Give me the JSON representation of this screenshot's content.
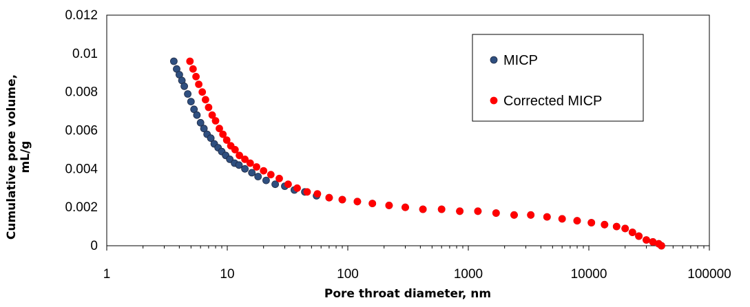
{
  "chart_data": {
    "type": "scatter",
    "title": "",
    "xlabel": "Pore throat diameter, nm",
    "ylabel_lines": [
      "Cumulative pore volume,",
      "mL/g"
    ],
    "x_scale": "log",
    "xlim": [
      1,
      100000
    ],
    "ylim": [
      0,
      0.012
    ],
    "x_ticks": [
      1,
      10,
      100,
      1000,
      10000,
      100000
    ],
    "x_tick_labels": [
      "1",
      "10",
      "100",
      "1000",
      "10000",
      "100000"
    ],
    "y_ticks": [
      0,
      0.002,
      0.004,
      0.006,
      0.008,
      0.01,
      0.012
    ],
    "y_tick_labels": [
      "0",
      "0.002",
      "0.004",
      "0.006",
      "0.008",
      "0.01",
      "0.012"
    ],
    "grid": false,
    "legend_position": "top-right",
    "series": [
      {
        "name": "MICP",
        "color": "#2F4F7F",
        "edge_color": "#1F2A44",
        "points": [
          [
            3.6,
            0.0096
          ],
          [
            3.8,
            0.0092
          ],
          [
            4.0,
            0.0089
          ],
          [
            4.2,
            0.0086
          ],
          [
            4.4,
            0.0083
          ],
          [
            4.7,
            0.0079
          ],
          [
            5.0,
            0.0075
          ],
          [
            5.3,
            0.0071
          ],
          [
            5.6,
            0.0068
          ],
          [
            6.0,
            0.0064
          ],
          [
            6.4,
            0.0061
          ],
          [
            6.8,
            0.0058
          ],
          [
            7.3,
            0.0056
          ],
          [
            7.8,
            0.0053
          ],
          [
            8.4,
            0.0051
          ],
          [
            9.0,
            0.0049
          ],
          [
            9.7,
            0.0047
          ],
          [
            10.5,
            0.0045
          ],
          [
            11.5,
            0.0043
          ],
          [
            12.5,
            0.0042
          ],
          [
            14,
            0.004
          ],
          [
            16,
            0.0038
          ],
          [
            18,
            0.0036
          ],
          [
            21,
            0.0034
          ],
          [
            25,
            0.0032
          ],
          [
            30,
            0.0031
          ],
          [
            36,
            0.0029
          ],
          [
            44,
            0.0028
          ],
          [
            55,
            0.0026
          ],
          [
            70,
            0.0025
          ],
          [
            90,
            0.0024
          ],
          [
            120,
            0.0023
          ],
          [
            160,
            0.0022
          ],
          [
            220,
            0.0021
          ],
          [
            300,
            0.002
          ],
          [
            420,
            0.0019
          ],
          [
            600,
            0.0019
          ],
          [
            850,
            0.0018
          ],
          [
            1200,
            0.0018
          ],
          [
            1700,
            0.0017
          ],
          [
            2400,
            0.0016
          ],
          [
            3300,
            0.0016
          ],
          [
            4500,
            0.0015
          ],
          [
            6000,
            0.0014
          ],
          [
            8000,
            0.0013
          ],
          [
            10500,
            0.0012
          ],
          [
            13500,
            0.0011
          ],
          [
            17000,
            0.001
          ],
          [
            20000,
            0.0009
          ],
          [
            23000,
            0.0007
          ],
          [
            26000,
            0.0005
          ],
          [
            30000,
            0.0003
          ],
          [
            34000,
            0.0002
          ],
          [
            38000,
            0.0001
          ],
          [
            40000,
            0.0
          ]
        ]
      },
      {
        "name": "Corrected MICP",
        "color": "#FF0000",
        "edge_color": "#FF0000",
        "points": [
          [
            4.9,
            0.0096
          ],
          [
            5.2,
            0.0092
          ],
          [
            5.5,
            0.0088
          ],
          [
            5.8,
            0.0084
          ],
          [
            6.2,
            0.008
          ],
          [
            6.6,
            0.0076
          ],
          [
            7.0,
            0.0072
          ],
          [
            7.5,
            0.0068
          ],
          [
            8.0,
            0.0065
          ],
          [
            8.6,
            0.0061
          ],
          [
            9.2,
            0.0058
          ],
          [
            9.9,
            0.0055
          ],
          [
            10.7,
            0.0052
          ],
          [
            11.6,
            0.005
          ],
          [
            12.6,
            0.0047
          ],
          [
            14,
            0.0045
          ],
          [
            15.5,
            0.0043
          ],
          [
            17.5,
            0.0041
          ],
          [
            20,
            0.0039
          ],
          [
            23,
            0.0037
          ],
          [
            27,
            0.0035
          ],
          [
            32,
            0.0032
          ],
          [
            38,
            0.003
          ],
          [
            46,
            0.0028
          ],
          [
            56,
            0.0027
          ],
          [
            70,
            0.0025
          ],
          [
            90,
            0.0024
          ],
          [
            120,
            0.0023
          ],
          [
            160,
            0.0022
          ],
          [
            220,
            0.0021
          ],
          [
            300,
            0.002
          ],
          [
            420,
            0.0019
          ],
          [
            600,
            0.0019
          ],
          [
            850,
            0.0018
          ],
          [
            1200,
            0.0018
          ],
          [
            1700,
            0.0017
          ],
          [
            2400,
            0.0016
          ],
          [
            3300,
            0.0016
          ],
          [
            4500,
            0.0015
          ],
          [
            6000,
            0.0014
          ],
          [
            8000,
            0.0013
          ],
          [
            10500,
            0.0012
          ],
          [
            13500,
            0.0011
          ],
          [
            17000,
            0.001
          ],
          [
            20000,
            0.0009
          ],
          [
            23000,
            0.0007
          ],
          [
            26000,
            0.0005
          ],
          [
            30000,
            0.0003
          ],
          [
            34000,
            0.0002
          ],
          [
            38000,
            0.0001
          ],
          [
            40000,
            0.0
          ]
        ]
      }
    ]
  }
}
